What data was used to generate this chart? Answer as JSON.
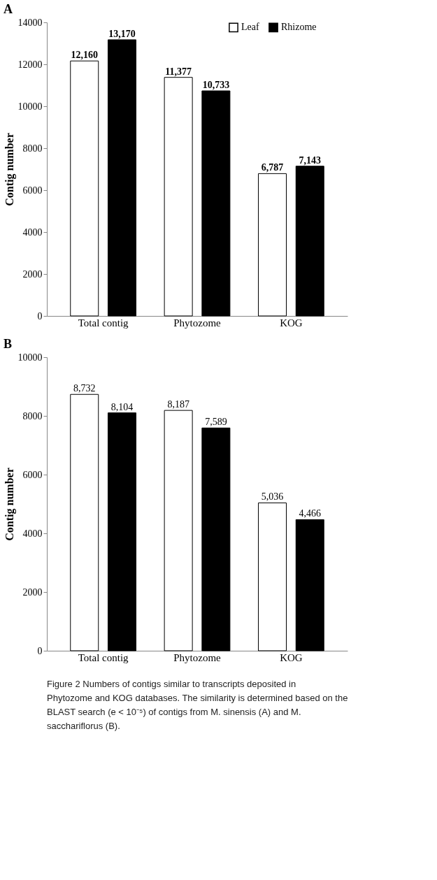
{
  "chart_data": [
    {
      "type": "bar",
      "title": "A",
      "ylabel": "Contig number",
      "categories": [
        "Total contig",
        "Phytozome",
        "KOG"
      ],
      "series": [
        {
          "name": "Leaf",
          "color": "#ffffff",
          "values": [
            12160,
            11377,
            6787
          ],
          "value_labels": [
            "12,160",
            "11,377",
            "6,787"
          ]
        },
        {
          "name": "Rhizome",
          "color": "#000000",
          "values": [
            13170,
            10733,
            7143
          ],
          "value_labels": [
            "13,170",
            "10,733",
            "7,143"
          ]
        }
      ],
      "ylim": [
        0,
        14000
      ],
      "yticks": [
        0,
        2000,
        4000,
        6000,
        8000,
        10000,
        12000,
        14000
      ],
      "grid": false,
      "legend": "top right"
    },
    {
      "type": "bar",
      "title": "B",
      "ylabel": "Contig number",
      "categories": [
        "Total contig",
        "Phytozome",
        "KOG"
      ],
      "series": [
        {
          "name": "Leaf",
          "color": "#ffffff",
          "values": [
            8732,
            8187,
            5036
          ],
          "value_labels": [
            "8,732",
            "8,187",
            "5,036"
          ]
        },
        {
          "name": "Rhizome",
          "color": "#000000",
          "values": [
            8104,
            7589,
            4466
          ],
          "value_labels": [
            "8,104",
            "7,589",
            "4,466"
          ]
        }
      ],
      "ylim": [
        0,
        10000
      ],
      "yticks": [
        0,
        2000,
        4000,
        6000,
        8000,
        10000
      ],
      "grid": false,
      "legend": false,
      "annotations": [
        "Figure 2 Numbers of contigs similar to transcripts deposited in Phytozome and KOG databases. The similarity is determined based on the BLAST search (e < 10⁻⁵) of contigs from M. sinensis (A) and M. sacchariflorus (B)."
      ]
    }
  ]
}
